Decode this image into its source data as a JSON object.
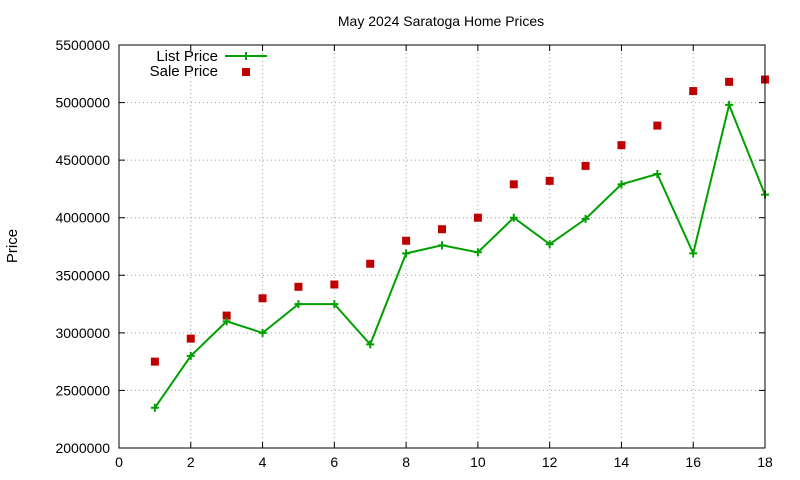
{
  "chart_data": {
    "type": "line",
    "title": "May 2024 Saratoga Home Prices",
    "xlabel": "",
    "ylabel": "Price",
    "xlim": [
      0,
      18
    ],
    "ylim": [
      2000000,
      5500000
    ],
    "xticks": [
      0,
      2,
      4,
      6,
      8,
      10,
      12,
      14,
      16,
      18
    ],
    "yticks": [
      2000000,
      2500000,
      3000000,
      3500000,
      4000000,
      4500000,
      5000000,
      5500000
    ],
    "grid": true,
    "legend_position": "top-left",
    "series": [
      {
        "name": "List Price",
        "style": "line-with-plus-markers",
        "color": "#00a000",
        "x": [
          1,
          2,
          3,
          4,
          5,
          6,
          7,
          8,
          9,
          10,
          11,
          12,
          13,
          14,
          15,
          16,
          17,
          18
        ],
        "values": [
          2350000,
          2800000,
          3100000,
          3000000,
          3250000,
          3250000,
          2900000,
          3690000,
          3760000,
          3700000,
          4000000,
          3770000,
          3990000,
          4290000,
          4380000,
          3690000,
          4980000,
          4200000
        ]
      },
      {
        "name": "Sale Price",
        "style": "square-markers",
        "color": "#c00000",
        "x": [
          1,
          2,
          3,
          4,
          5,
          6,
          7,
          8,
          9,
          10,
          11,
          12,
          13,
          14,
          15,
          16,
          17,
          18
        ],
        "values": [
          2750000,
          2950000,
          3150000,
          3300000,
          3400000,
          3420000,
          3600000,
          3800000,
          3900000,
          4000000,
          4290000,
          4320000,
          4450000,
          4630000,
          4800000,
          5100000,
          5180000,
          5200000
        ]
      }
    ]
  }
}
